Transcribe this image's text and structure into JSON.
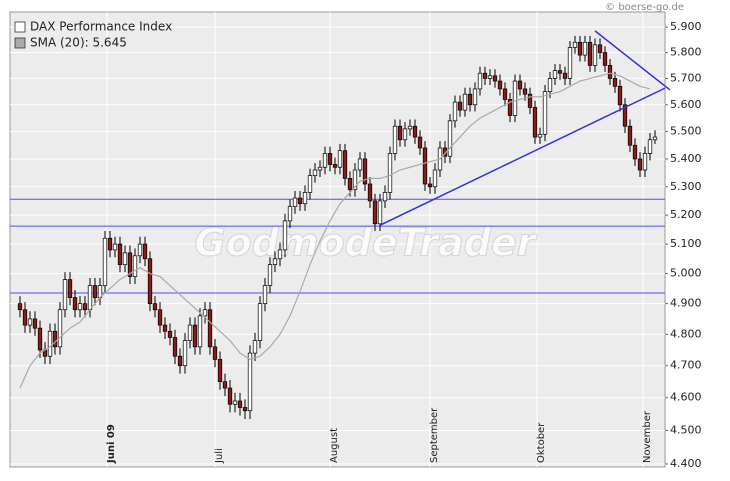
{
  "chart_data": {
    "type": "candlestick",
    "source": "© boerse-go.de",
    "watermark": "GodmodeTrader",
    "log_scale": true,
    "grid": true,
    "legend": "top-left",
    "ylim": [
      4391,
      5960
    ],
    "xlim": [
      -2,
      129
    ],
    "yticks": [
      {
        "value": 4400,
        "label": "4.400"
      },
      {
        "value": 4500,
        "label": "4.500"
      },
      {
        "value": 4600,
        "label": "4.600"
      },
      {
        "value": 4700,
        "label": "4.700"
      },
      {
        "value": 4800,
        "label": "4.800"
      },
      {
        "value": 4900,
        "label": "4.900"
      },
      {
        "value": 5000,
        "label": "5.000"
      },
      {
        "value": 5100,
        "label": "5.100"
      },
      {
        "value": 5200,
        "label": "5.200"
      },
      {
        "value": 5300,
        "label": "5.300"
      },
      {
        "value": 5400,
        "label": "5.400"
      },
      {
        "value": 5500,
        "label": "5.500"
      },
      {
        "value": 5600,
        "label": "5.600"
      },
      {
        "value": 5700,
        "label": "5.700"
      },
      {
        "value": 5800,
        "label": "5.800"
      },
      {
        "value": 5900,
        "label": "5.900"
      }
    ],
    "xticks": [
      {
        "value": 17.4,
        "label": "Juni 09"
      },
      {
        "value": 39,
        "label": "Juli"
      },
      {
        "value": 62,
        "label": "August"
      },
      {
        "value": 82,
        "label": "September"
      },
      {
        "value": 103.4,
        "label": "Oktober"
      },
      {
        "value": 124.6,
        "label": "November"
      }
    ],
    "hlines": [
      5256,
      5162,
      4935
    ],
    "hline_color": "#4d4dff",
    "trendlines": [
      {
        "x": [
          72,
          129
        ],
        "values": [
          5165,
          5663
        ]
      },
      {
        "x": [
          115,
          130
        ],
        "values": [
          5885,
          5656
        ]
      }
    ],
    "trend_color": "#3333dd",
    "series": [
      {
        "name": "DAX Performance Index",
        "color": "#ffffff",
        "up_color": "#ffffff",
        "down_color": "#8b1a1a",
        "ohlc": [
          [
            4900,
            4925,
            4855,
            4880
          ],
          [
            4880,
            4905,
            4805,
            4830
          ],
          [
            4830,
            4875,
            4805,
            4850
          ],
          [
            4850,
            4875,
            4795,
            4820
          ],
          [
            4820,
            4845,
            4725,
            4750
          ],
          [
            4750,
            4775,
            4705,
            4730
          ],
          [
            4730,
            4835,
            4705,
            4810
          ],
          [
            4810,
            4835,
            4735,
            4760
          ],
          [
            4760,
            4905,
            4735,
            4880
          ],
          [
            4880,
            5005,
            4855,
            4980
          ],
          [
            4980,
            5005,
            4895,
            4920
          ],
          [
            4920,
            4945,
            4855,
            4880
          ],
          [
            4880,
            4925,
            4855,
            4900
          ],
          [
            4900,
            4925,
            4855,
            4880
          ],
          [
            4880,
            4985,
            4855,
            4960
          ],
          [
            4960,
            4985,
            4895,
            4920
          ],
          [
            4920,
            4985,
            4895,
            4960
          ],
          [
            4960,
            5145,
            4935,
            5120
          ],
          [
            5120,
            5145,
            5055,
            5080
          ],
          [
            5080,
            5125,
            5055,
            5100
          ],
          [
            5100,
            5125,
            5005,
            5030
          ],
          [
            5030,
            5095,
            5005,
            5070
          ],
          [
            5070,
            5095,
            4965,
            4990
          ],
          [
            4990,
            5085,
            4965,
            5060
          ],
          [
            5060,
            5125,
            5035,
            5100
          ],
          [
            5100,
            5125,
            5025,
            5050
          ],
          [
            5050,
            5075,
            4875,
            4900
          ],
          [
            4900,
            4925,
            4855,
            4880
          ],
          [
            4880,
            4905,
            4805,
            4830
          ],
          [
            4830,
            4855,
            4785,
            4810
          ],
          [
            4810,
            4835,
            4765,
            4790
          ],
          [
            4790,
            4815,
            4705,
            4730
          ],
          [
            4730,
            4755,
            4675,
            4700
          ],
          [
            4700,
            4805,
            4675,
            4780
          ],
          [
            4780,
            4855,
            4755,
            4830
          ],
          [
            4830,
            4855,
            4735,
            4760
          ],
          [
            4760,
            4885,
            4735,
            4860
          ],
          [
            4860,
            4905,
            4835,
            4880
          ],
          [
            4880,
            4905,
            4735,
            4760
          ],
          [
            4760,
            4785,
            4695,
            4720
          ],
          [
            4720,
            4745,
            4625,
            4650
          ],
          [
            4650,
            4675,
            4605,
            4630
          ],
          [
            4630,
            4655,
            4555,
            4580
          ],
          [
            4580,
            4615,
            4555,
            4590
          ],
          [
            4590,
            4615,
            4545,
            4570
          ],
          [
            4570,
            4595,
            4535,
            4560
          ],
          [
            4560,
            4765,
            4535,
            4740
          ],
          [
            4740,
            4805,
            4715,
            4780
          ],
          [
            4780,
            4925,
            4755,
            4900
          ],
          [
            4900,
            4985,
            4875,
            4960
          ],
          [
            4960,
            5055,
            4935,
            5030
          ],
          [
            5030,
            5075,
            5005,
            5050
          ],
          [
            5050,
            5105,
            5025,
            5080
          ],
          [
            5080,
            5205,
            5055,
            5180
          ],
          [
            5180,
            5255,
            5155,
            5230
          ],
          [
            5230,
            5285,
            5205,
            5260
          ],
          [
            5260,
            5285,
            5215,
            5240
          ],
          [
            5240,
            5305,
            5215,
            5280
          ],
          [
            5280,
            5365,
            5255,
            5340
          ],
          [
            5340,
            5385,
            5315,
            5360
          ],
          [
            5360,
            5395,
            5335,
            5370
          ],
          [
            5370,
            5445,
            5345,
            5420
          ],
          [
            5420,
            5445,
            5355,
            5380
          ],
          [
            5380,
            5405,
            5345,
            5370
          ],
          [
            5370,
            5455,
            5345,
            5430
          ],
          [
            5430,
            5455,
            5305,
            5330
          ],
          [
            5330,
            5355,
            5265,
            5290
          ],
          [
            5290,
            5385,
            5265,
            5360
          ],
          [
            5360,
            5425,
            5335,
            5400
          ],
          [
            5400,
            5425,
            5285,
            5310
          ],
          [
            5310,
            5335,
            5225,
            5250
          ],
          [
            5250,
            5275,
            5145,
            5170
          ],
          [
            5170,
            5275,
            5145,
            5250
          ],
          [
            5250,
            5305,
            5225,
            5280
          ],
          [
            5280,
            5445,
            5255,
            5420
          ],
          [
            5420,
            5545,
            5395,
            5520
          ],
          [
            5520,
            5545,
            5445,
            5470
          ],
          [
            5470,
            5535,
            5445,
            5510
          ],
          [
            5510,
            5545,
            5485,
            5520
          ],
          [
            5520,
            5545,
            5455,
            5480
          ],
          [
            5480,
            5505,
            5415,
            5440
          ],
          [
            5440,
            5465,
            5285,
            5310
          ],
          [
            5310,
            5335,
            5275,
            5300
          ],
          [
            5300,
            5385,
            5275,
            5360
          ],
          [
            5360,
            5465,
            5335,
            5440
          ],
          [
            5440,
            5465,
            5385,
            5410
          ],
          [
            5410,
            5565,
            5385,
            5540
          ],
          [
            5540,
            5635,
            5515,
            5610
          ],
          [
            5610,
            5635,
            5555,
            5580
          ],
          [
            5580,
            5665,
            5555,
            5640
          ],
          [
            5640,
            5665,
            5575,
            5600
          ],
          [
            5600,
            5685,
            5575,
            5660
          ],
          [
            5660,
            5745,
            5635,
            5720
          ],
          [
            5720,
            5745,
            5675,
            5700
          ],
          [
            5700,
            5735,
            5675,
            5710
          ],
          [
            5710,
            5735,
            5665,
            5690
          ],
          [
            5690,
            5715,
            5635,
            5660
          ],
          [
            5660,
            5685,
            5595,
            5620
          ],
          [
            5620,
            5645,
            5535,
            5560
          ],
          [
            5560,
            5715,
            5535,
            5690
          ],
          [
            5690,
            5715,
            5635,
            5660
          ],
          [
            5660,
            5685,
            5615,
            5640
          ],
          [
            5640,
            5665,
            5565,
            5590
          ],
          [
            5590,
            5615,
            5455,
            5480
          ],
          [
            5480,
            5515,
            5455,
            5490
          ],
          [
            5490,
            5675,
            5465,
            5650
          ],
          [
            5650,
            5725,
            5625,
            5700
          ],
          [
            5700,
            5755,
            5675,
            5730
          ],
          [
            5730,
            5755,
            5695,
            5720
          ],
          [
            5720,
            5745,
            5675,
            5700
          ],
          [
            5700,
            5845,
            5675,
            5820
          ],
          [
            5820,
            5865,
            5795,
            5840
          ],
          [
            5840,
            5865,
            5765,
            5790
          ],
          [
            5790,
            5865,
            5765,
            5840
          ],
          [
            5840,
            5865,
            5725,
            5750
          ],
          [
            5750,
            5855,
            5725,
            5830
          ],
          [
            5830,
            5855,
            5775,
            5800
          ],
          [
            5800,
            5825,
            5725,
            5750
          ],
          [
            5750,
            5775,
            5675,
            5700
          ],
          [
            5700,
            5725,
            5645,
            5670
          ],
          [
            5670,
            5695,
            5575,
            5600
          ],
          [
            5600,
            5625,
            5495,
            5520
          ],
          [
            5520,
            5545,
            5425,
            5450
          ],
          [
            5450,
            5475,
            5375,
            5400
          ],
          [
            5400,
            5425,
            5335,
            5360
          ],
          [
            5360,
            5445,
            5335,
            5420
          ],
          [
            5420,
            5495,
            5395,
            5470
          ],
          [
            5470,
            5505,
            5455,
            5480
          ]
        ]
      },
      {
        "name": "SMA (20): 5.645",
        "color": "#aaaaaa",
        "x": [
          0,
          2,
          4,
          6,
          8,
          10,
          12,
          14,
          16,
          18,
          20,
          22,
          24,
          26,
          28,
          30,
          32,
          34,
          36,
          38,
          40,
          42,
          44,
          46,
          48,
          50,
          52,
          54,
          56,
          58,
          60,
          62,
          64,
          66,
          68,
          70,
          72,
          74,
          76,
          78,
          80,
          82,
          84,
          86,
          88,
          90,
          92,
          94,
          96,
          98,
          100,
          102,
          104,
          106,
          108,
          110,
          112,
          114,
          116,
          118,
          120,
          122,
          124,
          126
        ],
        "values": [
          4630,
          4700,
          4740,
          4760,
          4790,
          4820,
          4840,
          4880,
          4920,
          4950,
          4980,
          5000,
          5020,
          5000,
          4990,
          4960,
          4930,
          4900,
          4870,
          4840,
          4810,
          4780,
          4740,
          4720,
          4730,
          4760,
          4800,
          4860,
          4940,
          5030,
          5110,
          5180,
          5240,
          5280,
          5320,
          5330,
          5330,
          5340,
          5360,
          5370,
          5380,
          5390,
          5400,
          5440,
          5480,
          5520,
          5550,
          5570,
          5590,
          5610,
          5620,
          5630,
          5630,
          5640,
          5650,
          5670,
          5690,
          5700,
          5710,
          5720,
          5710,
          5690,
          5670,
          5660
        ]
      }
    ]
  }
}
